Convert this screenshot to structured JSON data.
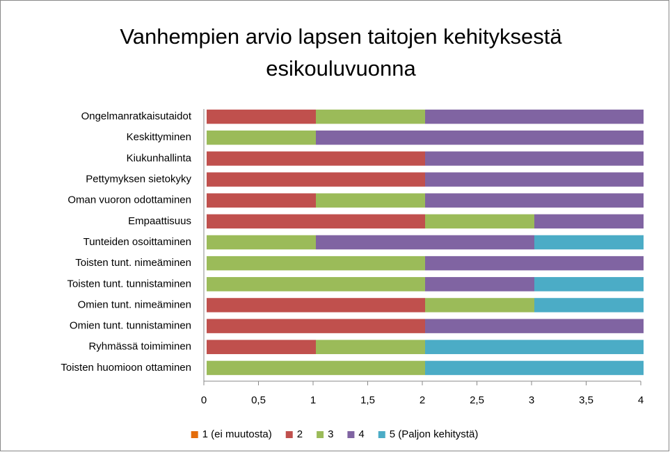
{
  "chart_data": {
    "type": "stacked_bar_horizontal",
    "title": "Vanhempien arvio lapsen taitojen kehityksestä esikouluvuonna",
    "categories": [
      "Ongelmanratkaisutaidot",
      "Keskittyminen",
      "Kiukunhallinta",
      "Pettymyksen sietokyky",
      "Oman vuoron odottaminen",
      "Empaattisuus",
      "Tunteiden osoittaminen",
      "Toisten tunt. nimeäminen",
      "Toisten tunt. tunnistaminen",
      "Omien tunt. nimeäminen",
      "Omien tunt. tunnistaminen",
      "Ryhmässä toimiminen",
      "Toisten huomioon ottaminen"
    ],
    "series": [
      {
        "name": "1 (ei muutosta)",
        "color": "#e46c0a",
        "values": [
          0,
          0,
          0,
          0,
          0,
          0,
          0,
          0,
          0,
          0,
          0,
          0,
          0
        ]
      },
      {
        "name": "2",
        "color": "#c0504d",
        "values": [
          1,
          0,
          2,
          2,
          1,
          2,
          0,
          0,
          0,
          2,
          2,
          1,
          0
        ]
      },
      {
        "name": "3",
        "color": "#9bbb59",
        "values": [
          1,
          1,
          0,
          0,
          1,
          1,
          1,
          2,
          2,
          1,
          0,
          1,
          2
        ]
      },
      {
        "name": "4",
        "color": "#8064a2",
        "values": [
          2,
          3,
          2,
          2,
          2,
          1,
          2,
          2,
          1,
          0,
          2,
          0,
          0
        ]
      },
      {
        "name": "5 (Paljon kehitystä)",
        "color": "#4bacc6",
        "values": [
          0,
          0,
          0,
          0,
          0,
          0,
          1,
          0,
          1,
          1,
          0,
          2,
          2
        ]
      }
    ],
    "xlim": [
      0,
      4
    ],
    "xticks": [
      0,
      {
        "value": 0.5,
        "label": "0,5"
      },
      1,
      {
        "value": 1.5,
        "label": "1,5"
      },
      2,
      {
        "value": 2.5,
        "label": "2,5"
      },
      3,
      {
        "value": 3.5,
        "label": "3,5"
      },
      4
    ],
    "legend": "bottom"
  }
}
